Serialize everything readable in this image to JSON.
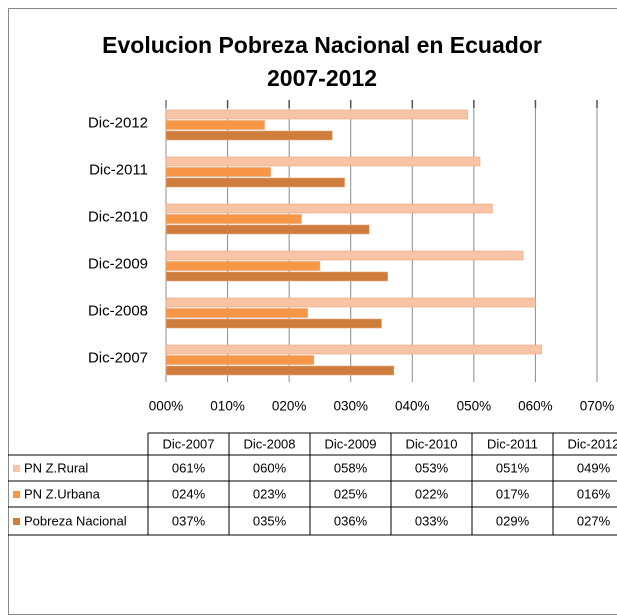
{
  "chart_data": {
    "type": "hbar",
    "title": [
      "Evolucion Pobreza Nacional en Ecuador",
      "2007-2012"
    ],
    "categories": [
      "Dic-2007",
      "Dic-2008",
      "Dic-2009",
      "Dic-2010",
      "Dic-2011",
      "Dic-2012"
    ],
    "series": [
      {
        "name": "PN Z.Rural",
        "color": "#f9c3a5",
        "values": [
          61,
          60,
          58,
          53,
          51,
          49
        ],
        "value_labels": [
          "061%",
          "060%",
          "058%",
          "053%",
          "051%",
          "049%"
        ]
      },
      {
        "name": "PN Z.Urbana",
        "color": "#f79646",
        "values": [
          24,
          23,
          25,
          22,
          17,
          16
        ],
        "value_labels": [
          "024%",
          "023%",
          "025%",
          "022%",
          "017%",
          "016%"
        ]
      },
      {
        "name": "Pobreza Nacional",
        "color": "#cf7d3c",
        "values": [
          37,
          35,
          36,
          33,
          29,
          27
        ],
        "value_labels": [
          "037%",
          "035%",
          "036%",
          "033%",
          "029%",
          "027%"
        ]
      }
    ],
    "xlim": [
      0,
      70
    ],
    "xticks": [
      {
        "value": 0,
        "label": "000%"
      },
      {
        "value": 10,
        "label": "010%"
      },
      {
        "value": 20,
        "label": "020%"
      },
      {
        "value": 30,
        "label": "030%"
      },
      {
        "value": 40,
        "label": "040%"
      },
      {
        "value": 50,
        "label": "050%"
      },
      {
        "value": 60,
        "label": "060%"
      },
      {
        "value": 70,
        "label": "070%"
      }
    ],
    "grid": true
  }
}
